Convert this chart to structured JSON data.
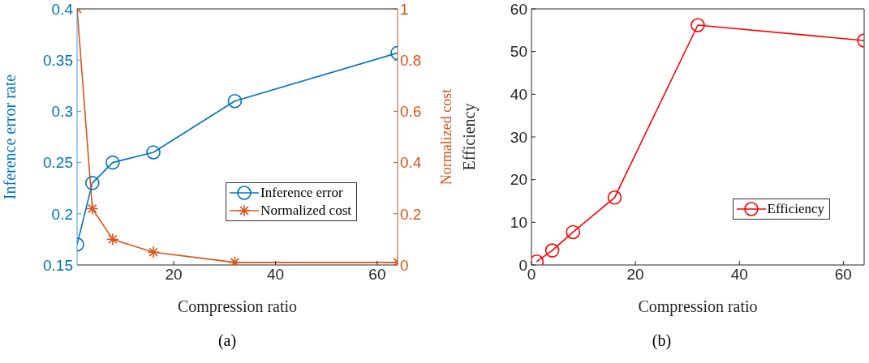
{
  "chart_data": [
    {
      "type": "line",
      "xlabel": "Compression ratio",
      "ylabel": "Inference error rate",
      "y2label": "Normalized cost",
      "xlim": [
        1,
        64
      ],
      "xticks": [
        20,
        40,
        60
      ],
      "ylim": [
        0.15,
        0.4
      ],
      "yticks": [
        0.15,
        0.2,
        0.25,
        0.3,
        0.35,
        0.4
      ],
      "y2lim": [
        0,
        1
      ],
      "y2ticks": [
        0,
        0.2,
        0.4,
        0.6,
        0.8,
        1
      ],
      "x": [
        1,
        4,
        8,
        16,
        32,
        64
      ],
      "legend": "right",
      "annotations": [
        "(a)"
      ],
      "series": [
        {
          "name": "Inference error",
          "color": "#0072bd",
          "marker": "circle",
          "values": [
            0.17,
            0.23,
            0.25,
            0.26,
            0.31,
            0.357
          ]
        },
        {
          "name": "Normalized cost",
          "color": "#d95319",
          "marker": "cross",
          "axis": "y2",
          "values": [
            1,
            0.22,
            0.1,
            0.05,
            0.01,
            0.01
          ]
        }
      ]
    },
    {
      "type": "line",
      "xlabel": "Compression ratio",
      "ylabel": "Efficiency",
      "xlim": [
        0,
        64
      ],
      "xticks": [
        0,
        20,
        40,
        60
      ],
      "ylim": [
        0,
        60
      ],
      "yticks": [
        0,
        10,
        20,
        30,
        40,
        50,
        60
      ],
      "x": [
        1,
        4,
        8,
        16,
        32,
        64
      ],
      "legend": "bottom right",
      "annotations": [
        "(b)"
      ],
      "series": [
        {
          "name": "Efficiency",
          "color": "#ff0000",
          "marker": "circle",
          "values": [
            0.8,
            3.4,
            7.7,
            15.8,
            56.2,
            52.6
          ]
        }
      ]
    }
  ]
}
